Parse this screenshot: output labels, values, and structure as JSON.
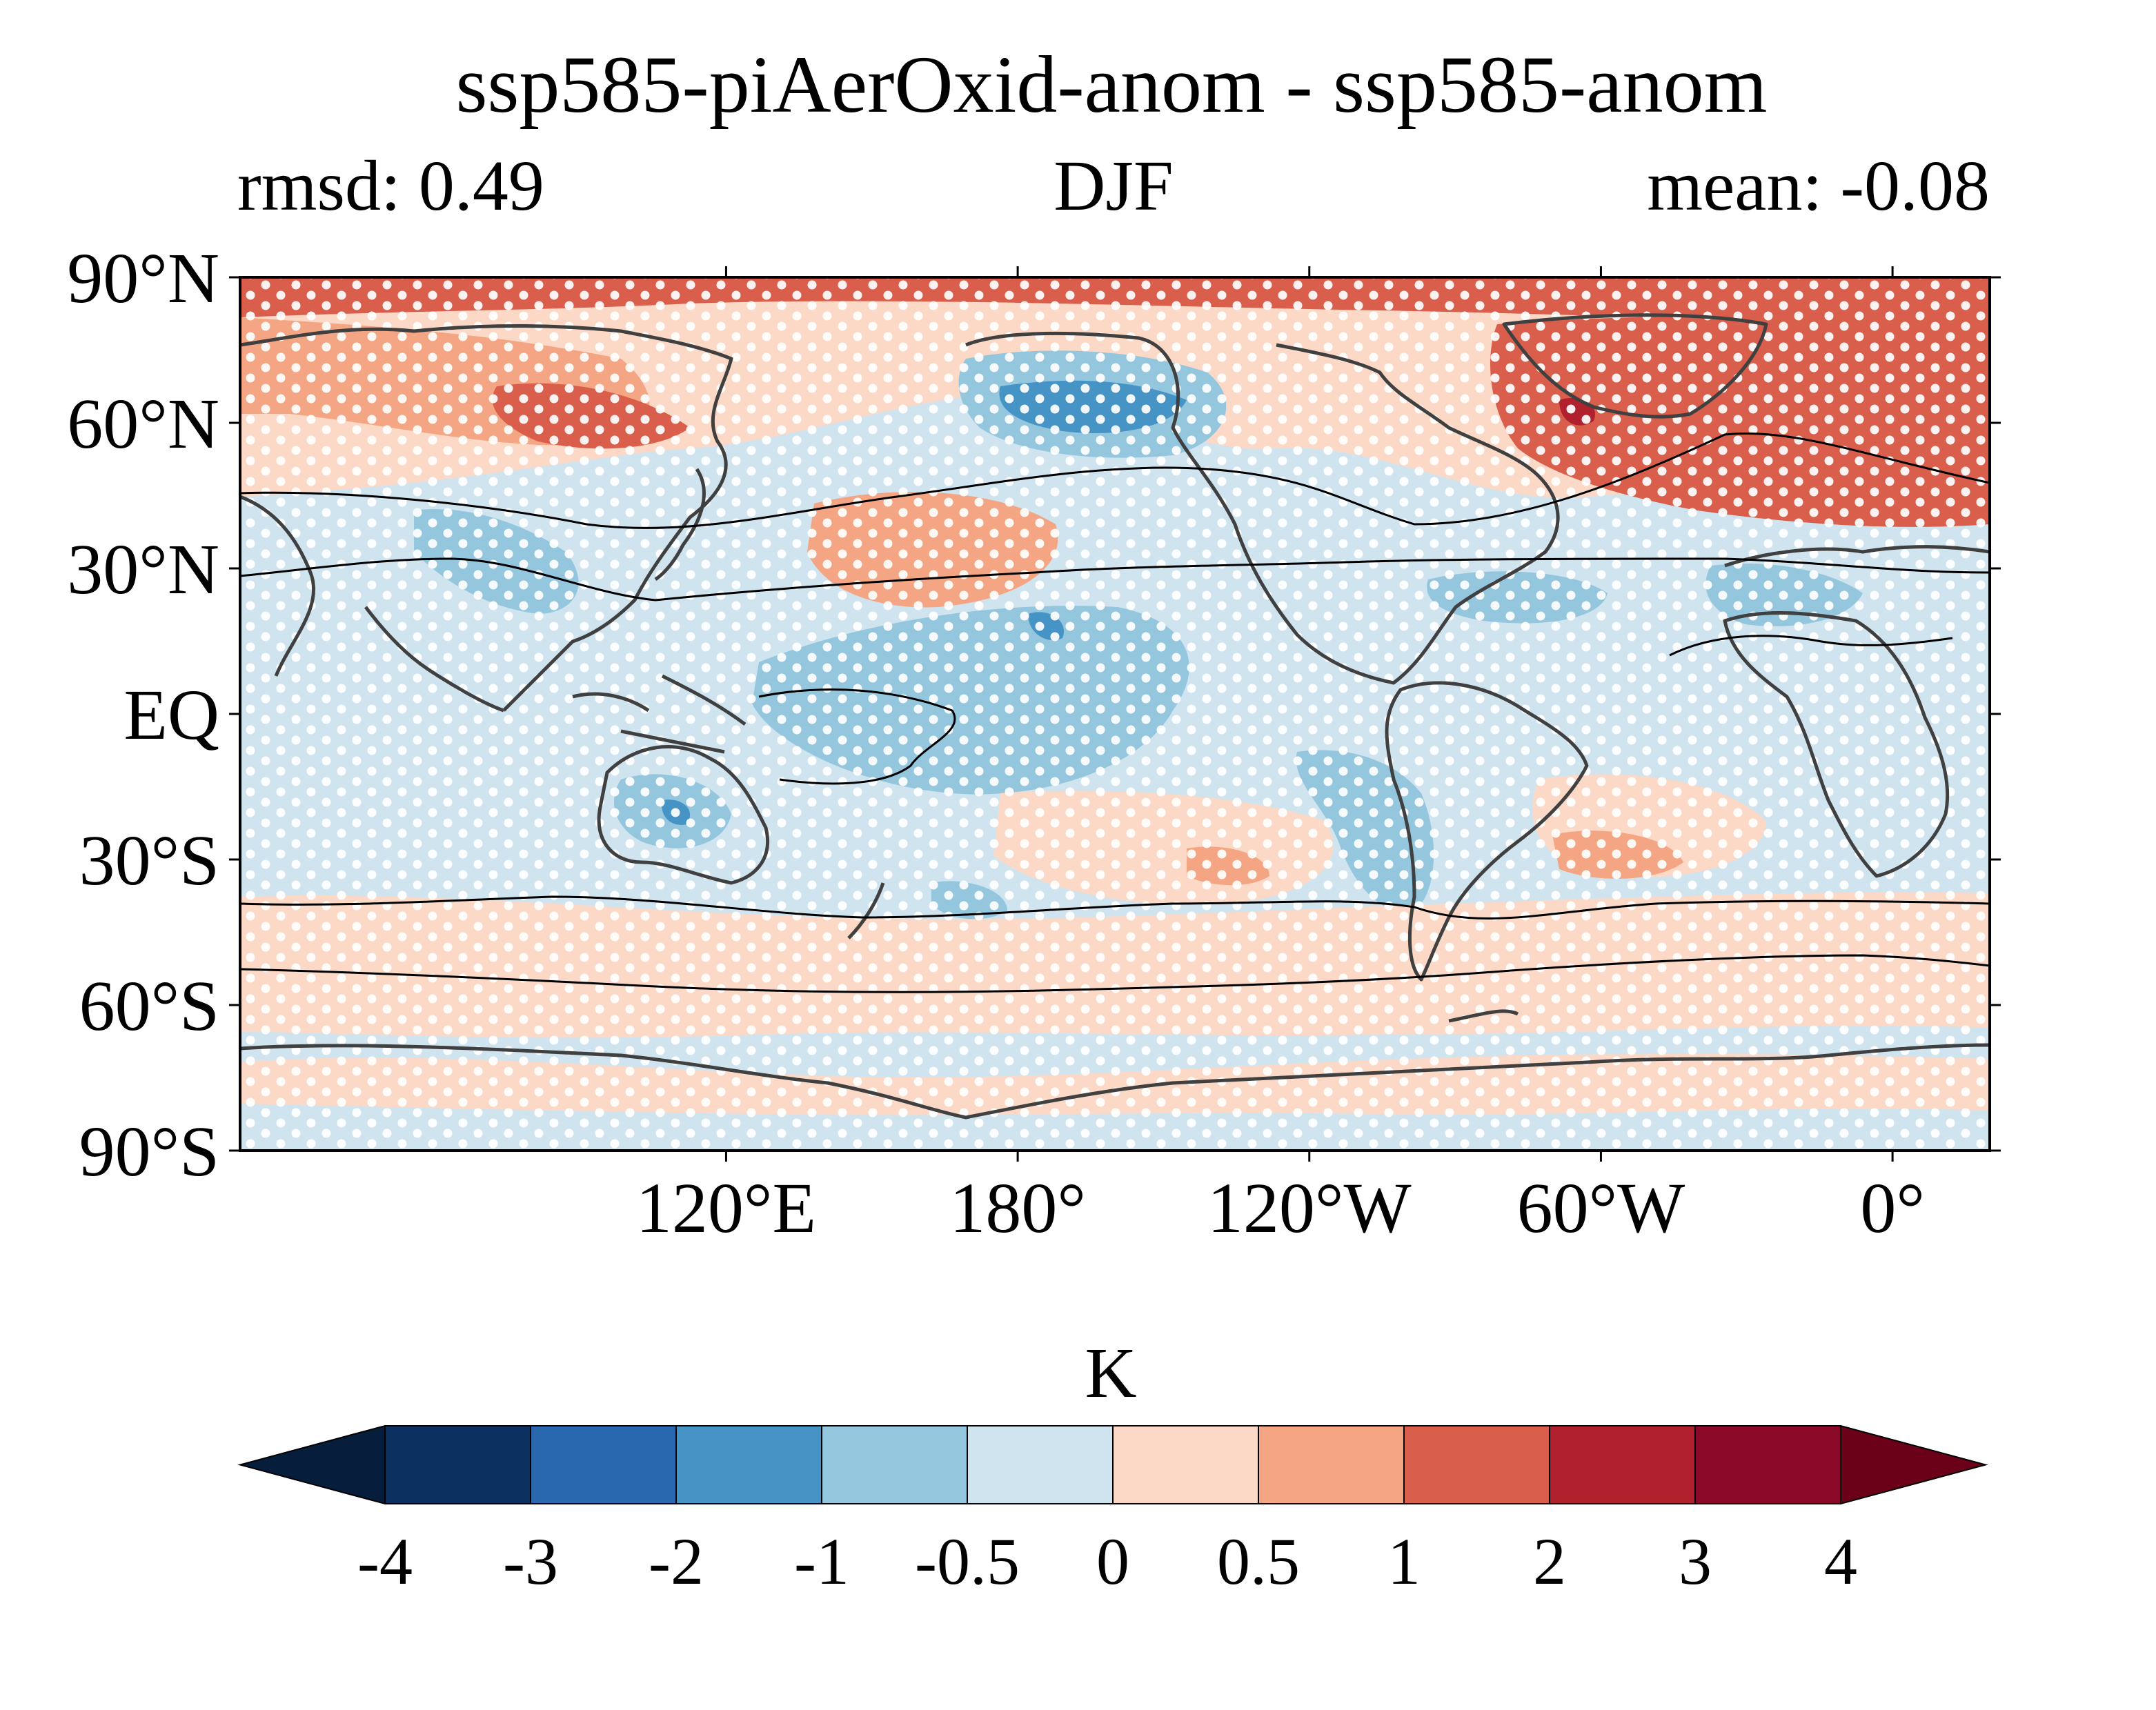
{
  "figure": {
    "title": "ssp585-piAerOxid-anom - ssp585-anom",
    "left_label": "rmsd: 0.49",
    "center_label": "DJF",
    "right_label": "mean: -0.08"
  },
  "map": {
    "projection": "plate-carree, centered near 150°W",
    "lon_range": [
      20,
      380
    ],
    "lat_range": [
      -90,
      90
    ],
    "lat_ticks": [
      {
        "value": 90,
        "label": "90°N"
      },
      {
        "value": 60,
        "label": "60°N"
      },
      {
        "value": 30,
        "label": "30°N"
      },
      {
        "value": 0,
        "label": "EQ"
      },
      {
        "value": -30,
        "label": "30°S"
      },
      {
        "value": -60,
        "label": "60°S"
      },
      {
        "value": -90,
        "label": "90°S"
      }
    ],
    "lon_ticks": [
      {
        "value": 120,
        "label": "120°E"
      },
      {
        "value": 180,
        "label": "180°"
      },
      {
        "value": 240,
        "label": "120°W"
      },
      {
        "value": 300,
        "label": "60°W"
      },
      {
        "value": 360,
        "label": "0°"
      }
    ],
    "field": "surface temperature anomaly difference (filled contours)",
    "stippling": "white dots mark grid cells passing significance test",
    "overlay": "thin black climatology contour lines",
    "coastline_color": "#404040"
  },
  "colorbar": {
    "label": "K",
    "levels": [
      "-4",
      "-3",
      "-2",
      "-1",
      "-0.5",
      "0",
      "0.5",
      "1",
      "2",
      "3",
      "4"
    ],
    "under_color": "#061d3c",
    "over_color": "#6b0019",
    "colors": [
      "#0b305f",
      "#2968ae",
      "#4694c6",
      "#94c6de",
      "#d0e4f0",
      "#fcd9c6",
      "#f4a584",
      "#d95f4c",
      "#b1202d",
      "#8a0928"
    ]
  }
}
